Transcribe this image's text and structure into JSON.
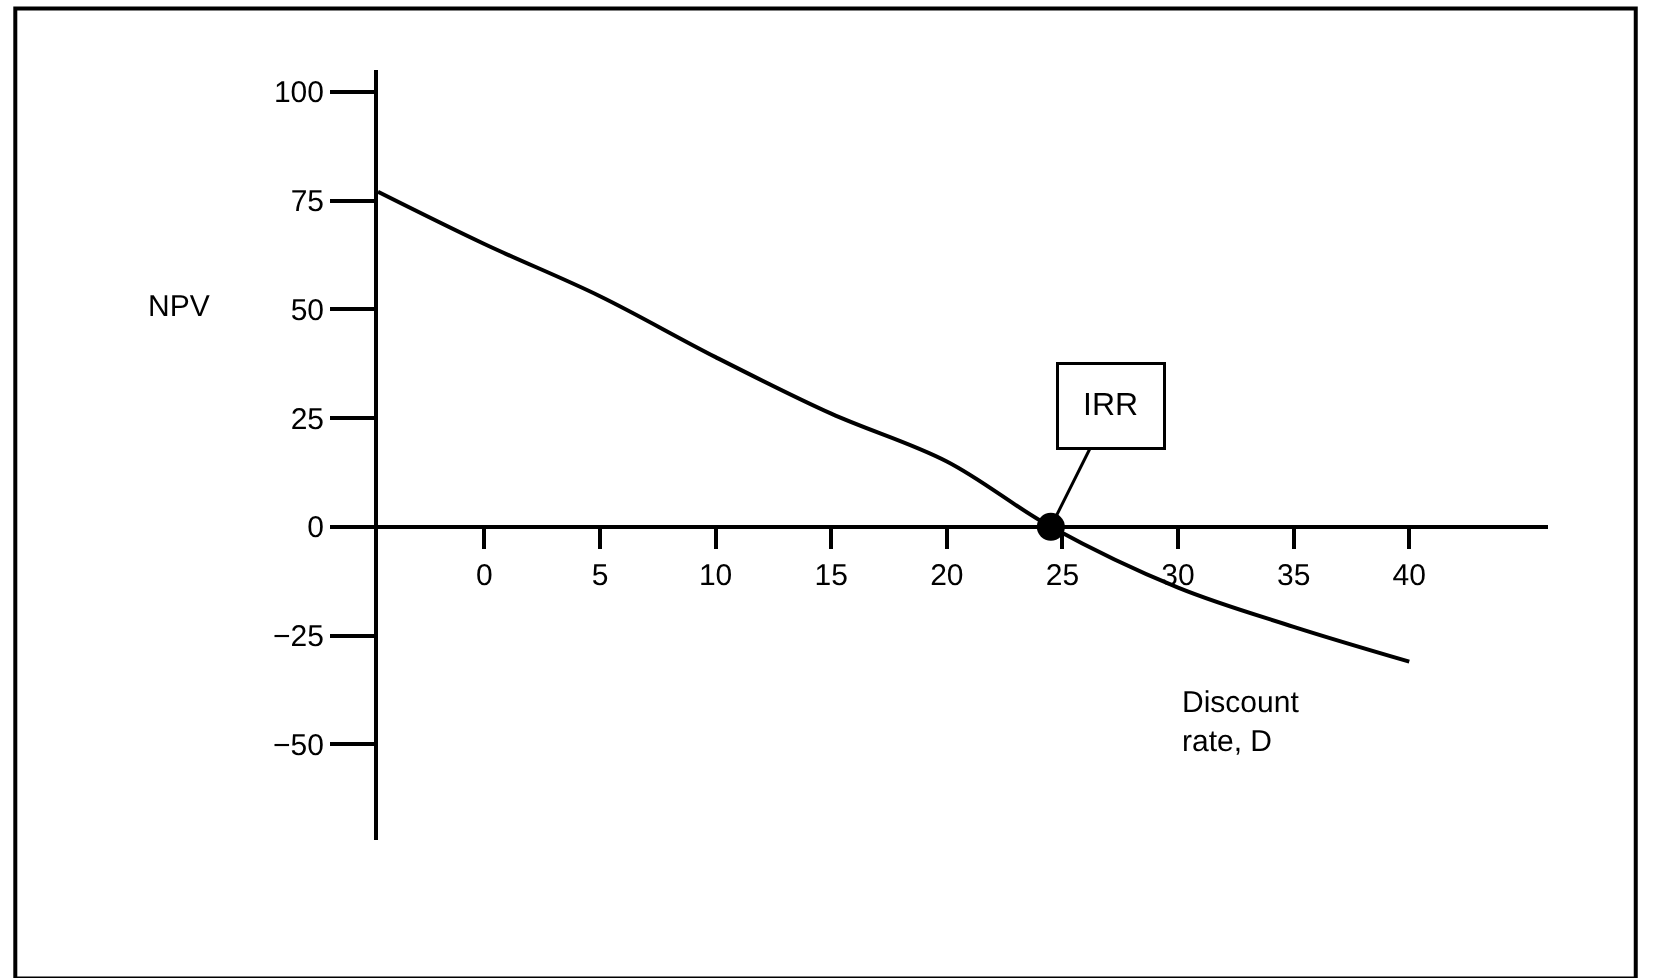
{
  "chart_data": {
    "type": "line",
    "xlabel": "Discount rate, D",
    "ylabel": "NPV",
    "xlim": [
      -4.6,
      46
    ],
    "ylim": [
      -72,
      105
    ],
    "xticks": [
      0,
      5,
      10,
      15,
      20,
      25,
      30,
      35,
      40
    ],
    "yticks": [
      100,
      75,
      50,
      25,
      0,
      {
        "value": -25,
        "label": "−25"
      },
      {
        "value": -50,
        "label": "−50"
      }
    ],
    "legend": false,
    "marker": "none",
    "line_style": "solid",
    "annotations": [
      {
        "text": "IRR",
        "x": 24.5,
        "y": 0
      }
    ],
    "series": [
      {
        "color": "#000000",
        "x": [
          -4.6,
          0,
          5,
          10,
          15,
          20,
          24.5,
          30,
          35,
          40
        ],
        "values": [
          77,
          65,
          53,
          39,
          26,
          15,
          0,
          -14,
          -23,
          -31
        ]
      },
      {
        "type": "scatter",
        "marker": "circle",
        "color": "#000000",
        "x": [
          24.5
        ],
        "values": [
          0
        ]
      }
    ]
  }
}
